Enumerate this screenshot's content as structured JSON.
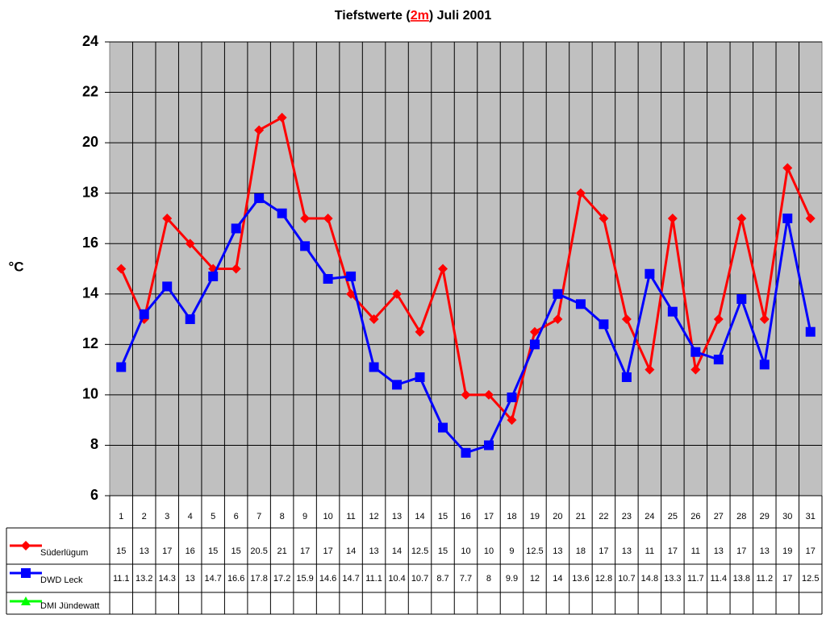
{
  "chart_data": {
    "type": "line",
    "title": [
      "Tiefstwerte (",
      "2m",
      ") Juli 2001"
    ],
    "y_label": "°C",
    "categories": [
      "1",
      "2",
      "3",
      "4",
      "5",
      "6",
      "7",
      "8",
      "9",
      "10",
      "11",
      "12",
      "13",
      "14",
      "15",
      "16",
      "17",
      "18",
      "19",
      "20",
      "21",
      "22",
      "23",
      "24",
      "25",
      "26",
      "27",
      "28",
      "29",
      "30",
      "31"
    ],
    "series": [
      {
        "name": "Süderlügum",
        "color": "#ff0000",
        "marker": "diamond",
        "values": [
          15,
          13,
          17,
          16,
          15,
          15,
          20.5,
          21,
          17,
          17,
          14,
          13,
          14,
          12.5,
          15,
          10,
          10,
          9,
          12.5,
          13,
          18,
          17,
          13,
          11,
          17,
          11,
          13,
          17,
          13,
          19,
          17
        ]
      },
      {
        "name": "DWD Leck",
        "color": "#0000ff",
        "marker": "square",
        "values": [
          11.1,
          13.2,
          14.3,
          13,
          14.7,
          16.6,
          17.8,
          17.2,
          15.9,
          14.6,
          14.7,
          11.1,
          10.4,
          10.7,
          8.7,
          7.7,
          8,
          9.9,
          12,
          14,
          13.6,
          12.8,
          10.7,
          14.8,
          13.3,
          11.7,
          11.4,
          13.8,
          11.2,
          17,
          12.5
        ]
      },
      {
        "name": "DMI Jündewatt",
        "color": "#00ff00",
        "marker": "triangle",
        "values": [
          null,
          null,
          null,
          null,
          null,
          null,
          null,
          null,
          null,
          null,
          null,
          null,
          null,
          null,
          null,
          null,
          null,
          null,
          null,
          null,
          null,
          null,
          null,
          null,
          null,
          null,
          null,
          null,
          null,
          null,
          null
        ]
      }
    ],
    "ylim": [
      6,
      24
    ],
    "yticks": [
      6,
      8,
      10,
      12,
      14,
      16,
      18,
      20,
      22,
      24
    ],
    "grid": true,
    "plot_background": "#c0c0c0"
  }
}
